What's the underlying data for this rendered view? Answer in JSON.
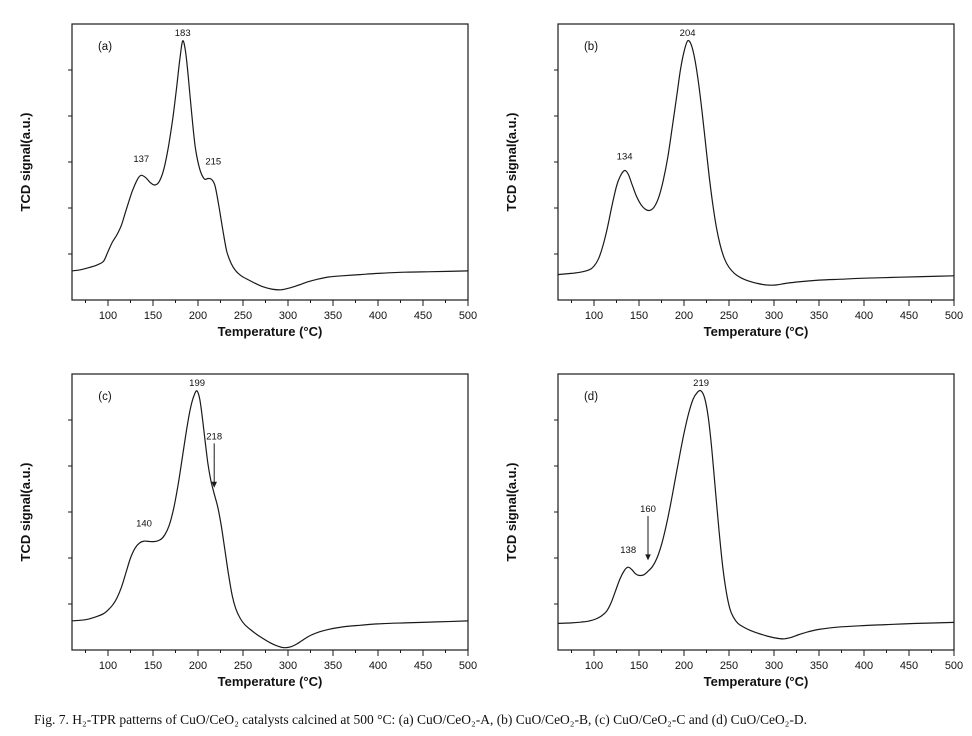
{
  "figure": {
    "caption": "Fig. 7. H₂-TPR patterns of CuO/CeO₂ catalysts calcined at 500 °C: (a) CuO/CeO₂-A, (b) CuO/CeO₂-B, (c) CuO/CeO₂-C and (d) CuO/CeO₂-D."
  },
  "chart_data": [
    {
      "type": "line",
      "panel_label": "(a)",
      "catalyst": "CuO/CeO₂-A",
      "xlabel": "Temperature (°C)",
      "ylabel": "TCD signal(a.u.)",
      "xlim": [
        60,
        500
      ],
      "ylim": [
        -0.07,
        1.07
      ],
      "xticks": [
        100,
        150,
        200,
        250,
        300,
        350,
        400,
        450,
        500
      ],
      "minor_xtick_step": 25,
      "grid": false,
      "legend": false,
      "line_color": "#1a1a1a",
      "peaks": [
        {
          "text": "137",
          "x": 137,
          "label_y": 0.5
        },
        {
          "text": "183",
          "x": 183,
          "label_y": 1.02
        },
        {
          "text": "215",
          "x": 217,
          "label_y": 0.49
        }
      ],
      "series": [
        {
          "name": "TPR profile",
          "points": [
            [
              60,
              0.05
            ],
            [
              70,
              0.055
            ],
            [
              80,
              0.065
            ],
            [
              88,
              0.075
            ],
            [
              95,
              0.09
            ],
            [
              100,
              0.13
            ],
            [
              105,
              0.17
            ],
            [
              110,
              0.2
            ],
            [
              115,
              0.24
            ],
            [
              120,
              0.3
            ],
            [
              127,
              0.38
            ],
            [
              133,
              0.43
            ],
            [
              137,
              0.445
            ],
            [
              142,
              0.435
            ],
            [
              147,
              0.415
            ],
            [
              152,
              0.405
            ],
            [
              157,
              0.42
            ],
            [
              162,
              0.47
            ],
            [
              167,
              0.56
            ],
            [
              172,
              0.68
            ],
            [
              176,
              0.8
            ],
            [
              180,
              0.93
            ],
            [
              183,
              1.0
            ],
            [
              186,
              0.96
            ],
            [
              189,
              0.86
            ],
            [
              193,
              0.7
            ],
            [
              197,
              0.56
            ],
            [
              202,
              0.47
            ],
            [
              207,
              0.43
            ],
            [
              211,
              0.432
            ],
            [
              215,
              0.428
            ],
            [
              219,
              0.4
            ],
            [
              224,
              0.3
            ],
            [
              228,
              0.21
            ],
            [
              232,
              0.13
            ],
            [
              237,
              0.08
            ],
            [
              242,
              0.05
            ],
            [
              248,
              0.03
            ],
            [
              255,
              0.015
            ],
            [
              263,
              0.0
            ],
            [
              272,
              -0.015
            ],
            [
              282,
              -0.025
            ],
            [
              292,
              -0.028
            ],
            [
              302,
              -0.02
            ],
            [
              312,
              -0.008
            ],
            [
              322,
              0.005
            ],
            [
              332,
              0.015
            ],
            [
              345,
              0.025
            ],
            [
              360,
              0.03
            ],
            [
              380,
              0.035
            ],
            [
              400,
              0.04
            ],
            [
              430,
              0.045
            ],
            [
              460,
              0.047
            ],
            [
              500,
              0.05
            ]
          ]
        }
      ]
    },
    {
      "type": "line",
      "panel_label": "(b)",
      "catalyst": "CuO/CeO₂-B",
      "xlabel": "Temperature (°C)",
      "ylabel": "TCD signal(a.u.)",
      "xlim": [
        60,
        500
      ],
      "ylim": [
        -0.07,
        1.07
      ],
      "xticks": [
        100,
        150,
        200,
        250,
        300,
        350,
        400,
        450,
        500
      ],
      "minor_xtick_step": 25,
      "grid": false,
      "legend": false,
      "line_color": "#1a1a1a",
      "peaks": [
        {
          "text": "134",
          "x": 134,
          "label_y": 0.51
        },
        {
          "text": "204",
          "x": 204,
          "label_y": 1.02
        }
      ],
      "series": [
        {
          "name": "TPR profile",
          "points": [
            [
              60,
              0.035
            ],
            [
              75,
              0.04
            ],
            [
              85,
              0.045
            ],
            [
              95,
              0.055
            ],
            [
              100,
              0.07
            ],
            [
              105,
              0.1
            ],
            [
              110,
              0.155
            ],
            [
              115,
              0.23
            ],
            [
              120,
              0.32
            ],
            [
              125,
              0.4
            ],
            [
              129,
              0.44
            ],
            [
              134,
              0.465
            ],
            [
              138,
              0.45
            ],
            [
              142,
              0.41
            ],
            [
              147,
              0.36
            ],
            [
              152,
              0.325
            ],
            [
              157,
              0.305
            ],
            [
              162,
              0.3
            ],
            [
              167,
              0.315
            ],
            [
              172,
              0.355
            ],
            [
              177,
              0.425
            ],
            [
              182,
              0.52
            ],
            [
              187,
              0.645
            ],
            [
              192,
              0.775
            ],
            [
              196,
              0.88
            ],
            [
              200,
              0.955
            ],
            [
              204,
              1.0
            ],
            [
              208,
              0.985
            ],
            [
              212,
              0.925
            ],
            [
              216,
              0.83
            ],
            [
              220,
              0.71
            ],
            [
              224,
              0.575
            ],
            [
              228,
              0.44
            ],
            [
              232,
              0.325
            ],
            [
              236,
              0.23
            ],
            [
              240,
              0.16
            ],
            [
              245,
              0.1
            ],
            [
              250,
              0.065
            ],
            [
              256,
              0.04
            ],
            [
              263,
              0.022
            ],
            [
              272,
              0.008
            ],
            [
              282,
              -0.002
            ],
            [
              292,
              -0.008
            ],
            [
              302,
              -0.008
            ],
            [
              315,
              0.0
            ],
            [
              330,
              0.006
            ],
            [
              350,
              0.012
            ],
            [
              375,
              0.016
            ],
            [
              400,
              0.02
            ],
            [
              440,
              0.024
            ],
            [
              470,
              0.027
            ],
            [
              500,
              0.03
            ]
          ]
        }
      ]
    },
    {
      "type": "line",
      "panel_label": "(c)",
      "catalyst": "CuO/CeO₂-C",
      "xlabel": "Temperature (°C)",
      "ylabel": "TCD signal(a.u.)",
      "xlim": [
        60,
        500
      ],
      "ylim": [
        -0.07,
        1.07
      ],
      "xticks": [
        100,
        150,
        200,
        250,
        300,
        350,
        400,
        450,
        500
      ],
      "minor_xtick_step": 25,
      "grid": false,
      "legend": false,
      "line_color": "#1a1a1a",
      "peaks": [
        {
          "text": "140",
          "x": 140,
          "label_y": 0.44
        },
        {
          "text": "199",
          "x": 199,
          "label_y": 1.02
        },
        {
          "text": "218",
          "x": 218,
          "label_y": 0.8,
          "arrow_to_y": 0.6
        }
      ],
      "series": [
        {
          "name": "TPR profile",
          "points": [
            [
              60,
              0.05
            ],
            [
              75,
              0.055
            ],
            [
              85,
              0.065
            ],
            [
              95,
              0.08
            ],
            [
              100,
              0.095
            ],
            [
              105,
              0.115
            ],
            [
              110,
              0.145
            ],
            [
              115,
              0.19
            ],
            [
              120,
              0.25
            ],
            [
              125,
              0.31
            ],
            [
              130,
              0.35
            ],
            [
              135,
              0.372
            ],
            [
              140,
              0.38
            ],
            [
              146,
              0.378
            ],
            [
              152,
              0.378
            ],
            [
              158,
              0.385
            ],
            [
              163,
              0.405
            ],
            [
              168,
              0.445
            ],
            [
              173,
              0.515
            ],
            [
              178,
              0.615
            ],
            [
              183,
              0.735
            ],
            [
              188,
              0.855
            ],
            [
              192,
              0.935
            ],
            [
              196,
              0.985
            ],
            [
              199,
              1.0
            ],
            [
              202,
              0.965
            ],
            [
              205,
              0.885
            ],
            [
              208,
              0.79
            ],
            [
              211,
              0.7
            ],
            [
              214,
              0.635
            ],
            [
              218,
              0.575
            ],
            [
              222,
              0.52
            ],
            [
              226,
              0.44
            ],
            [
              230,
              0.34
            ],
            [
              234,
              0.24
            ],
            [
              238,
              0.155
            ],
            [
              242,
              0.1
            ],
            [
              247,
              0.06
            ],
            [
              252,
              0.035
            ],
            [
              258,
              0.015
            ],
            [
              265,
              -0.005
            ],
            [
              272,
              -0.022
            ],
            [
              280,
              -0.04
            ],
            [
              288,
              -0.053
            ],
            [
              295,
              -0.06
            ],
            [
              302,
              -0.058
            ],
            [
              310,
              -0.045
            ],
            [
              318,
              -0.025
            ],
            [
              326,
              -0.008
            ],
            [
              335,
              0.005
            ],
            [
              345,
              0.015
            ],
            [
              360,
              0.025
            ],
            [
              380,
              0.032
            ],
            [
              400,
              0.038
            ],
            [
              430,
              0.042
            ],
            [
              465,
              0.046
            ],
            [
              500,
              0.05
            ]
          ]
        }
      ]
    },
    {
      "type": "line",
      "panel_label": "(d)",
      "catalyst": "CuO/CeO₂-D",
      "xlabel": "Temperature (°C)",
      "ylabel": "TCD signal(a.u.)",
      "xlim": [
        60,
        500
      ],
      "ylim": [
        -0.07,
        1.07
      ],
      "xticks": [
        100,
        150,
        200,
        250,
        300,
        350,
        400,
        450,
        500
      ],
      "minor_xtick_step": 25,
      "grid": false,
      "legend": false,
      "line_color": "#1a1a1a",
      "peaks": [
        {
          "text": "138",
          "x": 138,
          "label_y": 0.33
        },
        {
          "text": "160",
          "x": 160,
          "label_y": 0.5,
          "arrow_to_y": 0.3
        },
        {
          "text": "219",
          "x": 219,
          "label_y": 1.02
        }
      ],
      "series": [
        {
          "name": "TPR profile",
          "points": [
            [
              60,
              0.04
            ],
            [
              75,
              0.042
            ],
            [
              85,
              0.045
            ],
            [
              95,
              0.05
            ],
            [
              102,
              0.058
            ],
            [
              108,
              0.07
            ],
            [
              114,
              0.09
            ],
            [
              119,
              0.125
            ],
            [
              124,
              0.175
            ],
            [
              129,
              0.225
            ],
            [
              134,
              0.26
            ],
            [
              138,
              0.272
            ],
            [
              142,
              0.262
            ],
            [
              146,
              0.245
            ],
            [
              150,
              0.238
            ],
            [
              155,
              0.24
            ],
            [
              160,
              0.255
            ],
            [
              165,
              0.275
            ],
            [
              170,
              0.31
            ],
            [
              175,
              0.365
            ],
            [
              180,
              0.44
            ],
            [
              185,
              0.53
            ],
            [
              190,
              0.63
            ],
            [
              195,
              0.73
            ],
            [
              200,
              0.825
            ],
            [
              205,
              0.905
            ],
            [
              210,
              0.965
            ],
            [
              215,
              0.995
            ],
            [
              219,
              1.0
            ],
            [
              223,
              0.97
            ],
            [
              227,
              0.89
            ],
            [
              231,
              0.755
            ],
            [
              235,
              0.585
            ],
            [
              239,
              0.42
            ],
            [
              243,
              0.275
            ],
            [
              247,
              0.17
            ],
            [
              251,
              0.1
            ],
            [
              255,
              0.065
            ],
            [
              260,
              0.04
            ],
            [
              266,
              0.025
            ],
            [
              274,
              0.01
            ],
            [
              283,
              -0.002
            ],
            [
              292,
              -0.012
            ],
            [
              301,
              -0.02
            ],
            [
              310,
              -0.024
            ],
            [
              319,
              -0.018
            ],
            [
              328,
              -0.006
            ],
            [
              338,
              0.005
            ],
            [
              350,
              0.015
            ],
            [
              370,
              0.024
            ],
            [
              395,
              0.03
            ],
            [
              425,
              0.035
            ],
            [
              460,
              0.04
            ],
            [
              500,
              0.044
            ]
          ]
        }
      ]
    }
  ]
}
